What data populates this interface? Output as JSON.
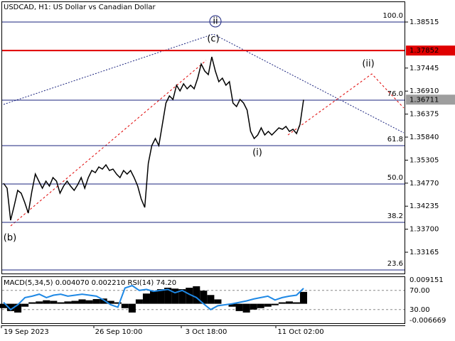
{
  "chart_data": [
    {
      "type": "price",
      "title": "USDCAD, H1:  US Dollar vs Canadian Dollar",
      "color": "#000000",
      "values": [
        1.34767,
        1.34651,
        1.33908,
        1.34238,
        1.34602,
        1.34535,
        1.34321,
        1.34073,
        1.34568,
        1.34981,
        1.34816,
        1.34651,
        1.34816,
        1.34701,
        1.34899,
        1.34816,
        1.34535,
        1.34701,
        1.34816,
        1.34701,
        1.34602,
        1.34734,
        1.34899,
        1.34651,
        1.34899,
        1.35064,
        1.35014,
        1.35146,
        1.35097,
        1.35196,
        1.35064,
        1.35097,
        1.34981,
        1.34899,
        1.35064,
        1.34981,
        1.35064,
        1.34899,
        1.34701,
        1.34403,
        1.34205,
        1.35229,
        1.35642,
        1.35807,
        1.35642,
        1.36137,
        1.36633,
        1.36798,
        1.36715,
        1.37045,
        1.36913,
        1.37078,
        1.36963,
        1.37045,
        1.36963,
        1.37211,
        1.37541,
        1.37376,
        1.37293,
        1.37706,
        1.37376,
        1.37128,
        1.37211,
        1.37045,
        1.37128,
        1.36633,
        1.3655,
        1.36715,
        1.36633,
        1.36467,
        1.35972,
        1.35807,
        1.3589,
        1.36055,
        1.3589,
        1.35972,
        1.3589,
        1.35972,
        1.36055,
        1.36022,
        1.36088,
        1.35972,
        1.36022,
        1.35923,
        1.36137,
        1.36711
      ],
      "ylim": [
        1.3267,
        1.39027
      ],
      "yticks": [
        1.38515,
        1.37445,
        {
          "value": 1.3691,
          "label": "1.36910"
        },
        1.36375,
        {
          "value": 1.3584,
          "label": "1.35840"
        },
        1.35305,
        {
          "value": 1.3477,
          "label": "1.34770"
        },
        1.34235,
        {
          "value": 1.337,
          "label": "1.33700"
        },
        1.33165
      ],
      "x_labels": [
        "19 Sep 2023",
        "26 Sep 10:00",
        "3 Oct 18:00",
        "11 Oct 02:00"
      ],
      "fib_color": "#1a237e",
      "fib_levels": [
        {
          "label": "100.0",
          "value": 1.38515
        },
        {
          "label": "76.0",
          "value": 1.36699
        },
        {
          "label": "61.8",
          "value": 1.35642
        },
        {
          "label": "50.0",
          "value": 1.3475
        },
        {
          "label": "38.2",
          "value": 1.33859
        },
        {
          "label": "23.6",
          "value": 1.32752
        }
      ],
      "resistance": {
        "value": 1.37852,
        "color": "#e00000"
      },
      "last_price": {
        "value": 1.36711,
        "color": "#9e9e9e"
      },
      "annotations": [
        "ii",
        "(c)",
        "(ii)",
        "(i)",
        "(b)"
      ],
      "annotation_colors": [
        "#1a237e",
        "#e00000",
        "#e00000",
        "#e00000",
        "#e00000"
      ]
    },
    {
      "type": "macd",
      "title": "MACD(5,34,5) 0.004070 0.002210 RSI(14) 74.20",
      "color": "#000000",
      "rsi_color": "#1e88e5",
      "values": [
        -0.0015,
        -0.0025,
        -0.003,
        -0.001,
        0.0005,
        0.0008,
        0.0012,
        0.001,
        0.0005,
        0.0008,
        0.001,
        0.0015,
        0.0012,
        0.0016,
        0.0018,
        0.001,
        0.0005,
        -0.0015,
        -0.003,
        0.0015,
        0.0035,
        0.0045,
        0.005,
        0.0055,
        0.0052,
        0.005,
        0.0055,
        0.006,
        0.0045,
        0.003,
        0.0015,
        0,
        -0.001,
        -0.0025,
        -0.003,
        -0.002,
        -0.0015,
        -0.001,
        -0.0005,
        0.0005,
        0.0008,
        0.0005,
        0.00407
      ],
      "rsi": [
        45,
        30,
        40,
        55,
        58,
        62,
        55,
        60,
        62,
        58,
        60,
        62,
        60,
        58,
        50,
        40,
        35,
        75,
        80,
        70,
        72,
        68,
        70,
        72,
        65,
        70,
        62,
        55,
        42,
        30,
        38,
        40,
        42,
        45,
        48,
        52,
        55,
        58,
        50,
        55,
        58,
        60,
        74.2
      ],
      "ylim": [
        -0.006669,
        0.009151
      ],
      "rsi_lim": [
        0,
        100
      ],
      "rsi_ticks": [
        {
          "value": 70,
          "label": "70.00"
        },
        {
          "value": 30,
          "label": "30.00"
        }
      ]
    }
  ]
}
